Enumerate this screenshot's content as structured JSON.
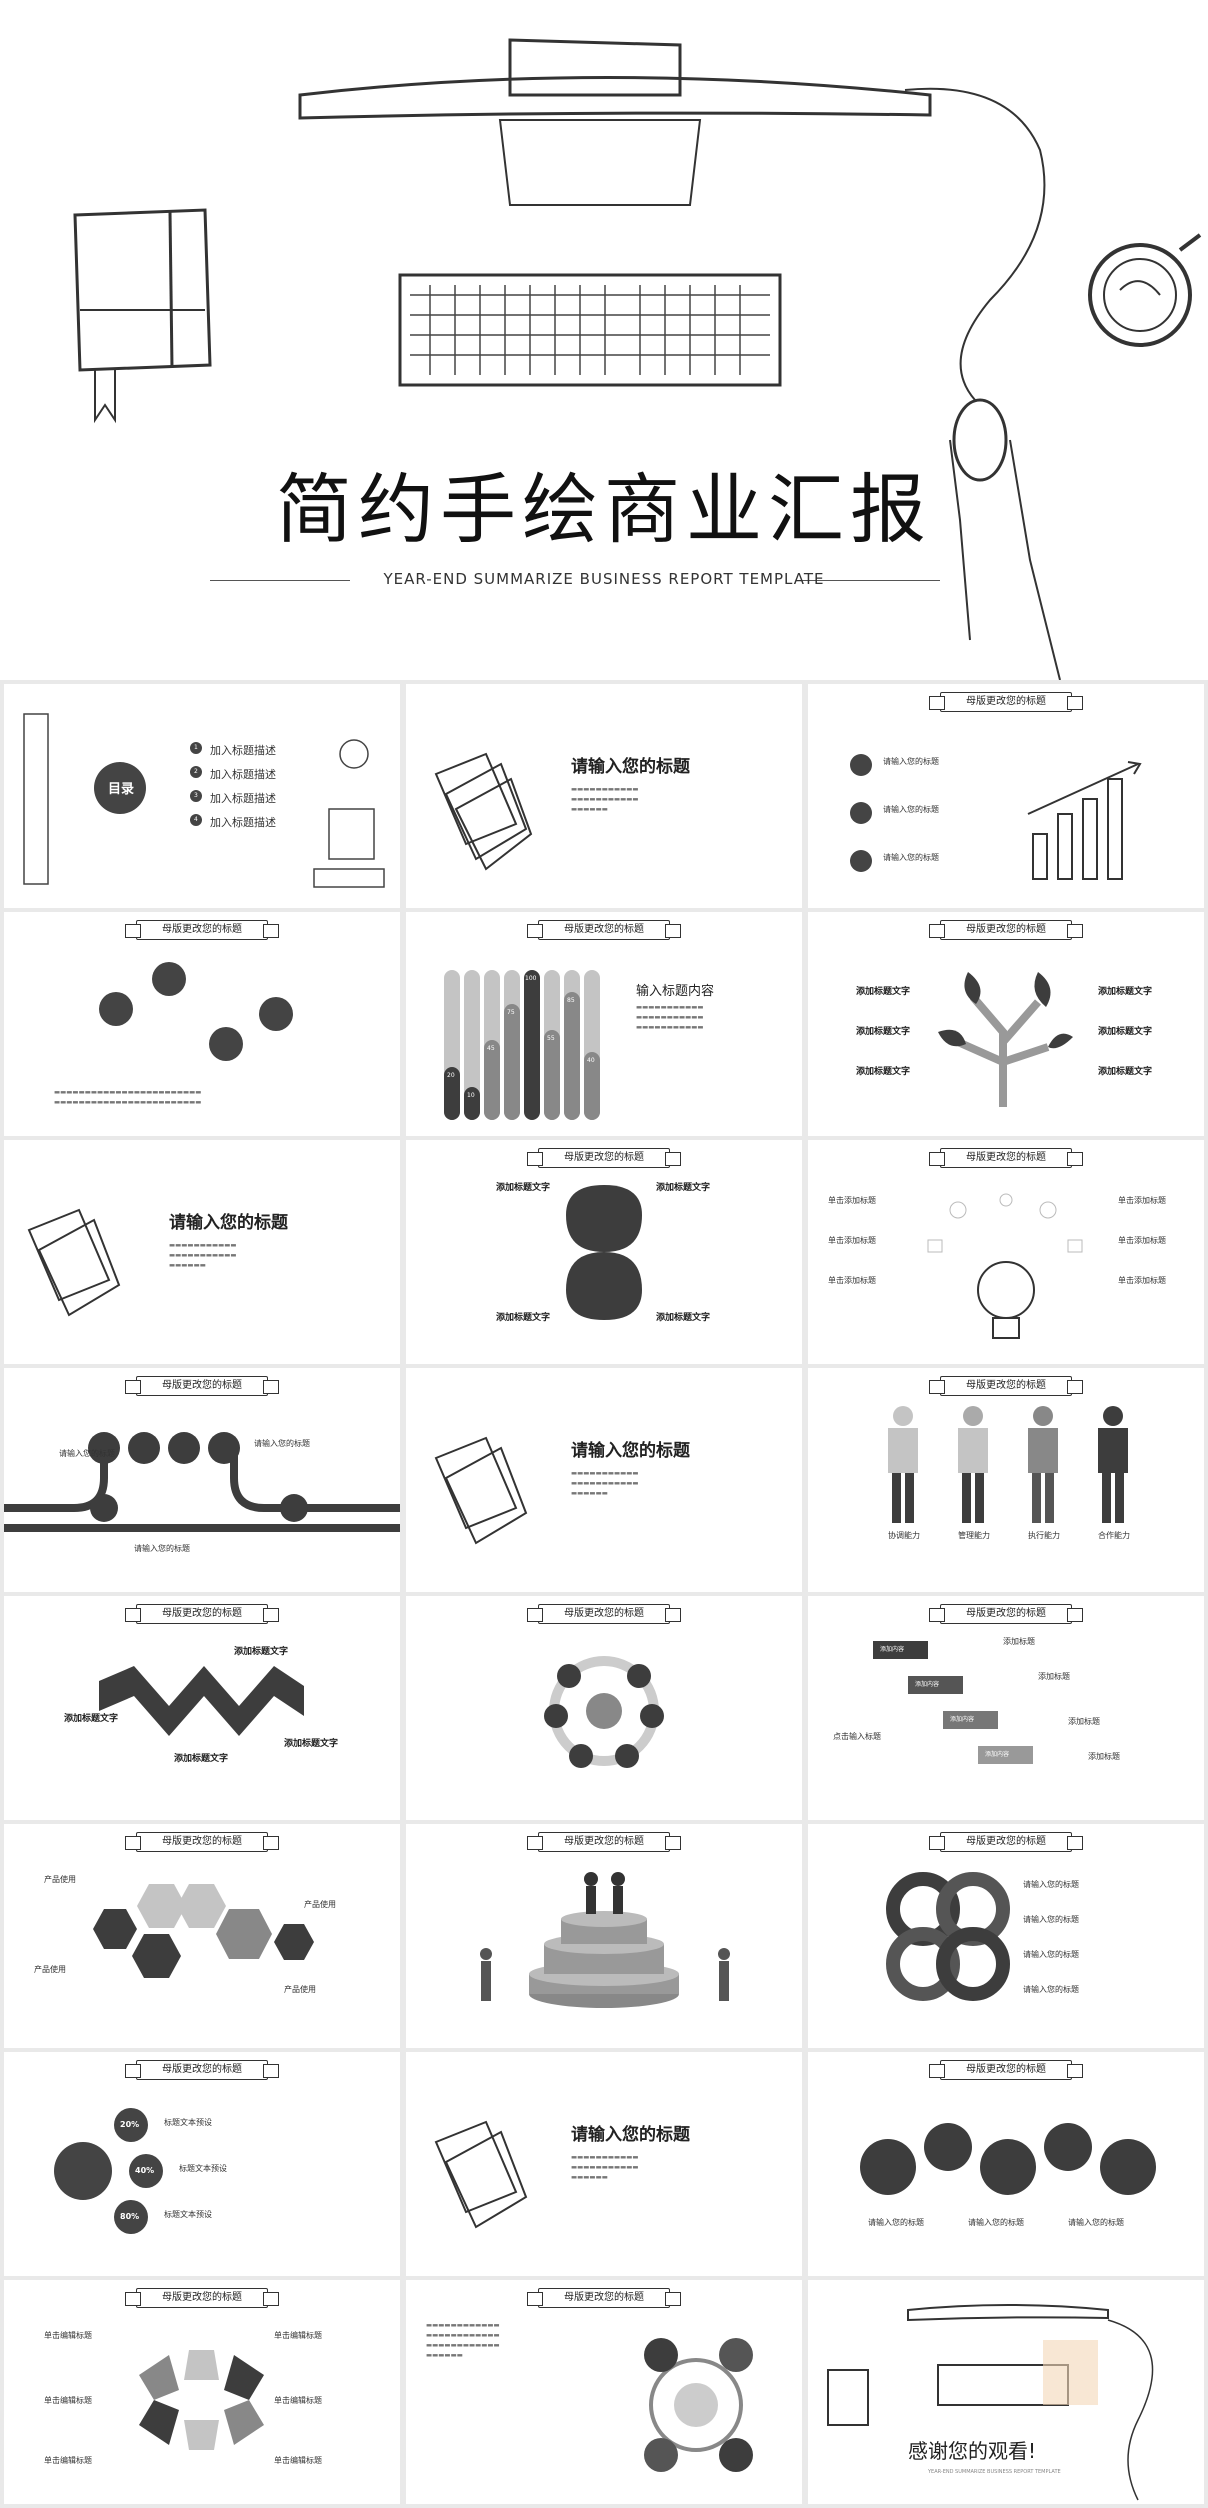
{
  "hero": {
    "title": "简约手绘商业汇报",
    "subtitle": "YEAR-END  SUMMARIZE  BUSINESS  REPORT TEMPLATE"
  },
  "common": {
    "banner": "母版更改您的标题",
    "input_title": "请输入您的标题",
    "add_title_text": "添加标题文字",
    "input_title_small": "请输入您的标题"
  },
  "toc": {
    "heading": "目录",
    "items": [
      {
        "num": "1",
        "label": "加入标题描述"
      },
      {
        "num": "2",
        "label": "加入标题描述"
      },
      {
        "num": "3",
        "label": "加入标题描述"
      },
      {
        "num": "4",
        "label": "加入标题描述"
      }
    ]
  },
  "bars": {
    "heading": "输入标题内容",
    "values": [
      "20",
      "10",
      "45",
      "75",
      "100",
      "55",
      "85",
      "40"
    ]
  },
  "people": {
    "labels": [
      "协调能力",
      "管理能力",
      "执行能力",
      "合作能力"
    ]
  },
  "arrows": {
    "add_content": "添加内容",
    "add_title": "添加标题",
    "click_input": "点击输入标题"
  },
  "percent": {
    "values": [
      "20%",
      "40%",
      "80%"
    ],
    "label": "标题文本预设"
  },
  "hex": {
    "label": "产品使用"
  },
  "wave": {
    "label": "单击编辑标题"
  },
  "bulb": {
    "label": "单击添加标题"
  },
  "ending": {
    "thanks": "感谢您的观看!",
    "sub": "YEAR-END  SUMMARIZE  BUSINESS  REPORT TEMPLATE"
  },
  "colors": {
    "dark": "#3d3d3d",
    "mid": "#888888",
    "light": "#c4c4c4",
    "bg": "#e9e9e9"
  }
}
